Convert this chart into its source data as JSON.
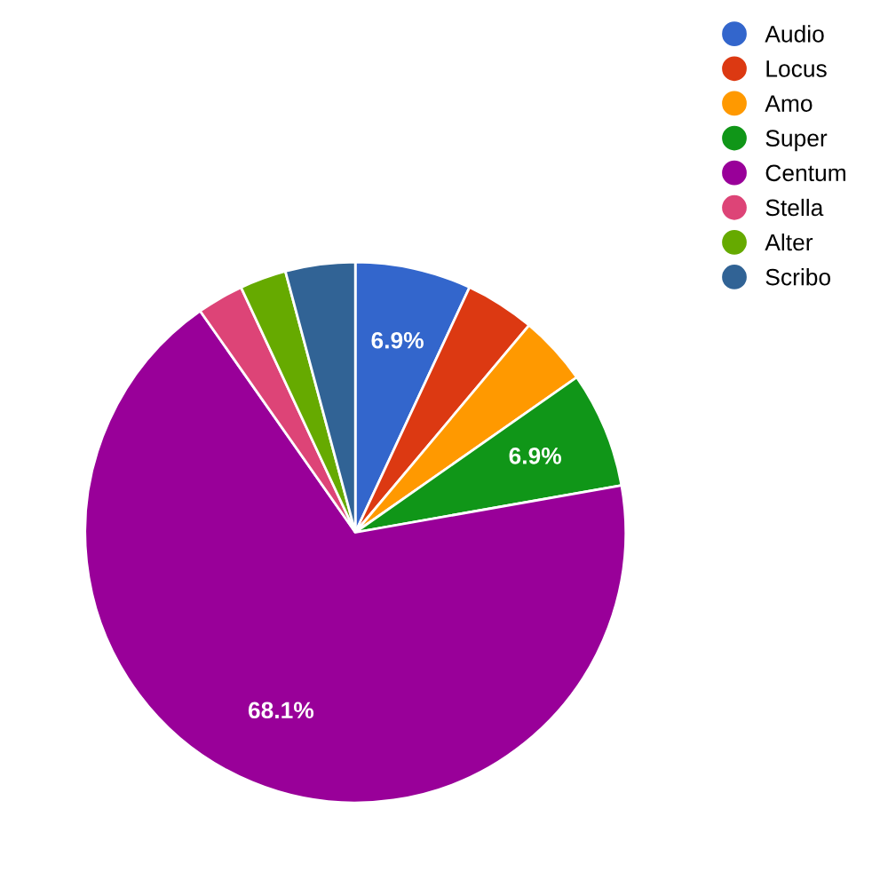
{
  "chart_data": {
    "type": "pie",
    "categories": [
      "Audio",
      "Locus",
      "Amo",
      "Super",
      "Centum",
      "Stella",
      "Alter",
      "Scribo"
    ],
    "values": [
      6.94,
      4.17,
      4.17,
      6.94,
      68.06,
      2.78,
      2.78,
      4.17
    ],
    "colors": [
      "#3366cc",
      "#dc3912",
      "#ff9900",
      "#109618",
      "#990099",
      "#dd4477",
      "#66aa00",
      "#316395"
    ],
    "value_labels": [
      "6.9%",
      null,
      null,
      "6.9%",
      "68.1%",
      null,
      null,
      null
    ],
    "legend": "top right"
  }
}
